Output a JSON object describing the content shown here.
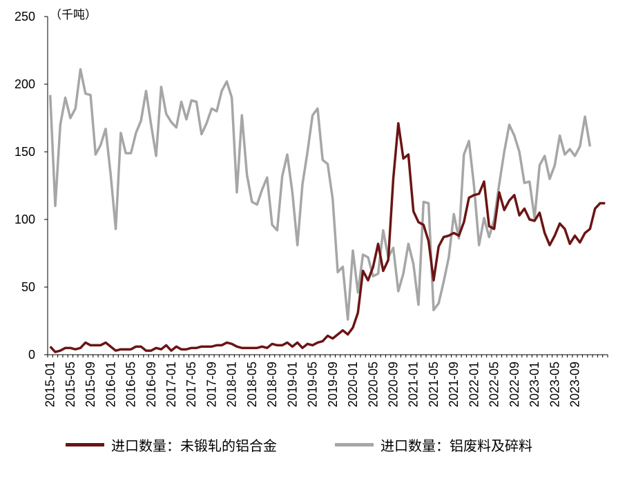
{
  "chart_data": {
    "type": "line",
    "unit_label": "（千吨）",
    "y_ticks": [
      "0",
      "50",
      "100",
      "150",
      "200",
      "250"
    ],
    "ylim": [
      0,
      250
    ],
    "x_tick_labels": [
      "2015-01",
      "2015-05",
      "2015-09",
      "2016-01",
      "2016-05",
      "2016-09",
      "2017-01",
      "2017-05",
      "2017-09",
      "2018-01",
      "2018-05",
      "2018-09",
      "2019-01",
      "2019-05",
      "2019-09",
      "2020-01",
      "2020-05",
      "2020-09",
      "2021-01",
      "2021-05",
      "2021-09",
      "2022-01",
      "2022-05",
      "2022-09",
      "2023-01",
      "2023-05",
      "2023-09"
    ],
    "x_start": "2015-01",
    "grid": false,
    "legend_position": "bottom",
    "series": [
      {
        "name": "进口数量：未锻轧的铝合金",
        "color": "#6b1414",
        "values": [
          6,
          2,
          3,
          5,
          5,
          4,
          5,
          9,
          7,
          7,
          7,
          9,
          6,
          3,
          4,
          4,
          4,
          6,
          6,
          3,
          3,
          5,
          4,
          7,
          3,
          6,
          4,
          4,
          5,
          5,
          6,
          6,
          6,
          7,
          7,
          9,
          8,
          6,
          5,
          5,
          5,
          5,
          6,
          5,
          8,
          7,
          7,
          9,
          6,
          9,
          5,
          8,
          7,
          9,
          10,
          14,
          12,
          15,
          18,
          15,
          20,
          31,
          62,
          55,
          65,
          82,
          62,
          70,
          130,
          171,
          145,
          148,
          106,
          98,
          96,
          84,
          55,
          80,
          87,
          88,
          90,
          88,
          98,
          116,
          118,
          119,
          128,
          95,
          93,
          120,
          107,
          114,
          118,
          103,
          108,
          100,
          99,
          105,
          90,
          81,
          88,
          97,
          93,
          82,
          88,
          83,
          90,
          93,
          108,
          112,
          112
        ]
      },
      {
        "name": "进口数量：铝废料及碎料",
        "color": "#a6a6a6",
        "values": [
          192,
          110,
          170,
          190,
          175,
          182,
          211,
          193,
          192,
          148,
          155,
          167,
          133,
          93,
          164,
          149,
          149,
          164,
          173,
          195,
          170,
          147,
          198,
          178,
          172,
          168,
          187,
          174,
          188,
          187,
          163,
          171,
          182,
          180,
          195,
          202,
          190,
          120,
          177,
          133,
          113,
          111,
          122,
          131,
          96,
          92,
          132,
          148,
          120,
          81,
          126,
          150,
          177,
          182,
          144,
          141,
          115,
          61,
          65,
          26,
          77,
          46,
          74,
          72,
          58,
          60,
          92,
          72,
          79,
          47,
          60,
          82,
          67,
          37,
          113,
          112,
          33,
          38,
          54,
          72,
          104,
          86,
          148,
          158,
          125,
          81,
          101,
          87,
          100,
          126,
          150,
          170,
          162,
          150,
          127,
          128,
          101,
          140,
          147,
          130,
          140,
          162,
          148,
          152,
          147,
          154,
          176,
          154
        ]
      }
    ]
  }
}
